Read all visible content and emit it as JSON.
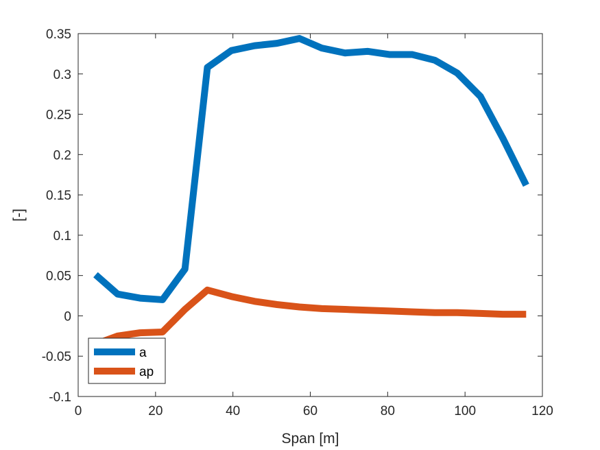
{
  "chart_data": {
    "type": "line",
    "title": "",
    "xlabel": "Span [m]",
    "ylabel": "[-]",
    "xlim": [
      0,
      120
    ],
    "ylim": [
      -0.1,
      0.35
    ],
    "xticks": [
      "0",
      "20",
      "40",
      "60",
      "80",
      "100",
      "120"
    ],
    "yticks": [
      "-0.1",
      "-0.05",
      "0",
      "0.05",
      "0.1",
      "0.15",
      "0.2",
      "0.25",
      "0.3",
      "0.35"
    ],
    "grid": false,
    "legend_position": "bottom-left",
    "series": [
      {
        "name": "a",
        "color": "#0072BD",
        "x": [
          4.5,
          10.2,
          16.0,
          21.8,
          27.6,
          33.4,
          39.6,
          45.6,
          51.4,
          57.2,
          63.0,
          69.0,
          74.8,
          80.6,
          86.4,
          92.2,
          98.0,
          104.0,
          109.8,
          115.8
        ],
        "y": [
          0.051,
          0.027,
          0.022,
          0.02,
          0.058,
          0.308,
          0.329,
          0.335,
          0.338,
          0.344,
          0.332,
          0.326,
          0.328,
          0.324,
          0.324,
          0.317,
          0.301,
          0.272,
          0.22,
          0.162
        ]
      },
      {
        "name": "ap",
        "color": "#D95319",
        "x": [
          4.5,
          10.2,
          16.0,
          21.8,
          27.6,
          33.4,
          39.6,
          45.6,
          51.4,
          57.2,
          63.0,
          69.0,
          74.8,
          80.6,
          86.4,
          92.2,
          98.0,
          104.0,
          109.8,
          115.8
        ],
        "y": [
          -0.035,
          -0.025,
          -0.021,
          -0.02,
          0.008,
          0.032,
          0.024,
          0.018,
          0.014,
          0.011,
          0.009,
          0.008,
          0.007,
          0.006,
          0.005,
          0.004,
          0.004,
          0.003,
          0.002,
          0.002
        ]
      }
    ]
  }
}
